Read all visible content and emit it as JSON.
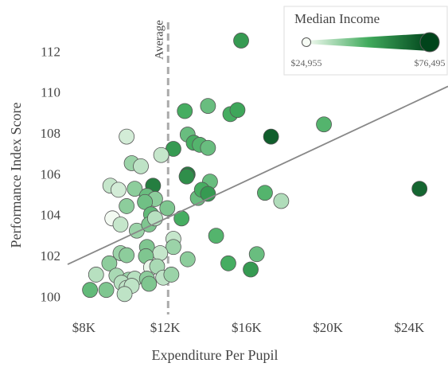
{
  "chart_data": {
    "type": "scatter",
    "x_label": "Expenditure Per Pupil",
    "y_label": "Performance Index Score",
    "xlim": [
      7200,
      25900
    ],
    "ylim": [
      99.2,
      114
    ],
    "xticks": [
      {
        "value": 8000,
        "label": "$8K"
      },
      {
        "value": 12000,
        "label": "$12K"
      },
      {
        "value": 16000,
        "label": "$16K"
      },
      {
        "value": 20000,
        "label": "$20K"
      },
      {
        "value": 24000,
        "label": "$24K"
      }
    ],
    "yticks": [
      100,
      102,
      104,
      106,
      108,
      110,
      112
    ],
    "average_line": {
      "label": "Average",
      "x": 12140
    },
    "trendline": {
      "x": [
        7200,
        25900
      ],
      "y": [
        101.65,
        110.36
      ]
    },
    "colorbar": {
      "title": "Median Income",
      "lim": [
        {
          "value": 24955,
          "label": "$24,955"
        },
        {
          "value": 76495,
          "label": "$76,495"
        }
      ],
      "colors": [
        "#f7fcf5",
        "#41ab5d",
        "#00441b"
      ]
    },
    "points": {
      "x": [
        15730,
        12960,
        14100,
        15200,
        15550,
        19800,
        17200,
        10100,
        13100,
        12400,
        13400,
        13700,
        14100,
        11800,
        10350,
        10800,
        13100,
        13050,
        14200,
        11400,
        9300,
        9700,
        10500,
        11100,
        11500,
        16900,
        17700,
        24500,
        13600,
        13800,
        14100,
        10100,
        11000,
        12100,
        11300,
        9400,
        12800,
        9800,
        10600,
        11200,
        11500,
        14500,
        12400,
        12400,
        9800,
        10100,
        11100,
        11750,
        13100,
        16500,
        9250,
        11050,
        11300,
        11600,
        15100,
        16200,
        9600,
        8600,
        10200,
        10500,
        11100,
        11900,
        12300,
        9850,
        10100,
        10350,
        11200,
        8300,
        9100,
        10000
      ],
      "y": [
        112.6,
        109.15,
        109.4,
        109.0,
        109.2,
        108.5,
        107.9,
        107.9,
        108.0,
        107.3,
        107.6,
        107.5,
        107.35,
        107.0,
        106.6,
        106.45,
        106.05,
        105.95,
        105.7,
        105.5,
        105.5,
        105.3,
        105.35,
        105.0,
        104.85,
        105.15,
        104.75,
        105.35,
        104.9,
        105.3,
        105.1,
        104.5,
        104.7,
        104.4,
        104.1,
        103.9,
        103.9,
        103.6,
        103.3,
        103.6,
        103.9,
        103.05,
        102.9,
        102.5,
        102.2,
        102.1,
        102.5,
        102.2,
        101.9,
        102.15,
        101.7,
        102.05,
        101.5,
        101.55,
        101.7,
        101.4,
        101.1,
        101.15,
        100.9,
        100.95,
        100.95,
        101.0,
        101.15,
        100.75,
        100.5,
        100.6,
        100.7,
        100.4,
        100.4,
        100.2
      ],
      "income": [
        55000,
        50000,
        45000,
        50000,
        52000,
        48000,
        70000,
        30000,
        45000,
        55000,
        50000,
        48000,
        45000,
        32000,
        38000,
        33000,
        62000,
        58000,
        45000,
        62000,
        32000,
        30000,
        40000,
        45000,
        40000,
        48000,
        35000,
        68000,
        45000,
        50000,
        55000,
        40000,
        44000,
        42000,
        46000,
        25500,
        50000,
        32000,
        38000,
        42000,
        34000,
        48000,
        32000,
        38000,
        38000,
        40000,
        42000,
        32000,
        40000,
        45000,
        40000,
        42000,
        27000,
        36000,
        50000,
        55000,
        36000,
        34000,
        38000,
        34000,
        40000,
        33000,
        38000,
        34000,
        33000,
        33000,
        42000,
        46000,
        42000,
        33000
      ]
    }
  }
}
